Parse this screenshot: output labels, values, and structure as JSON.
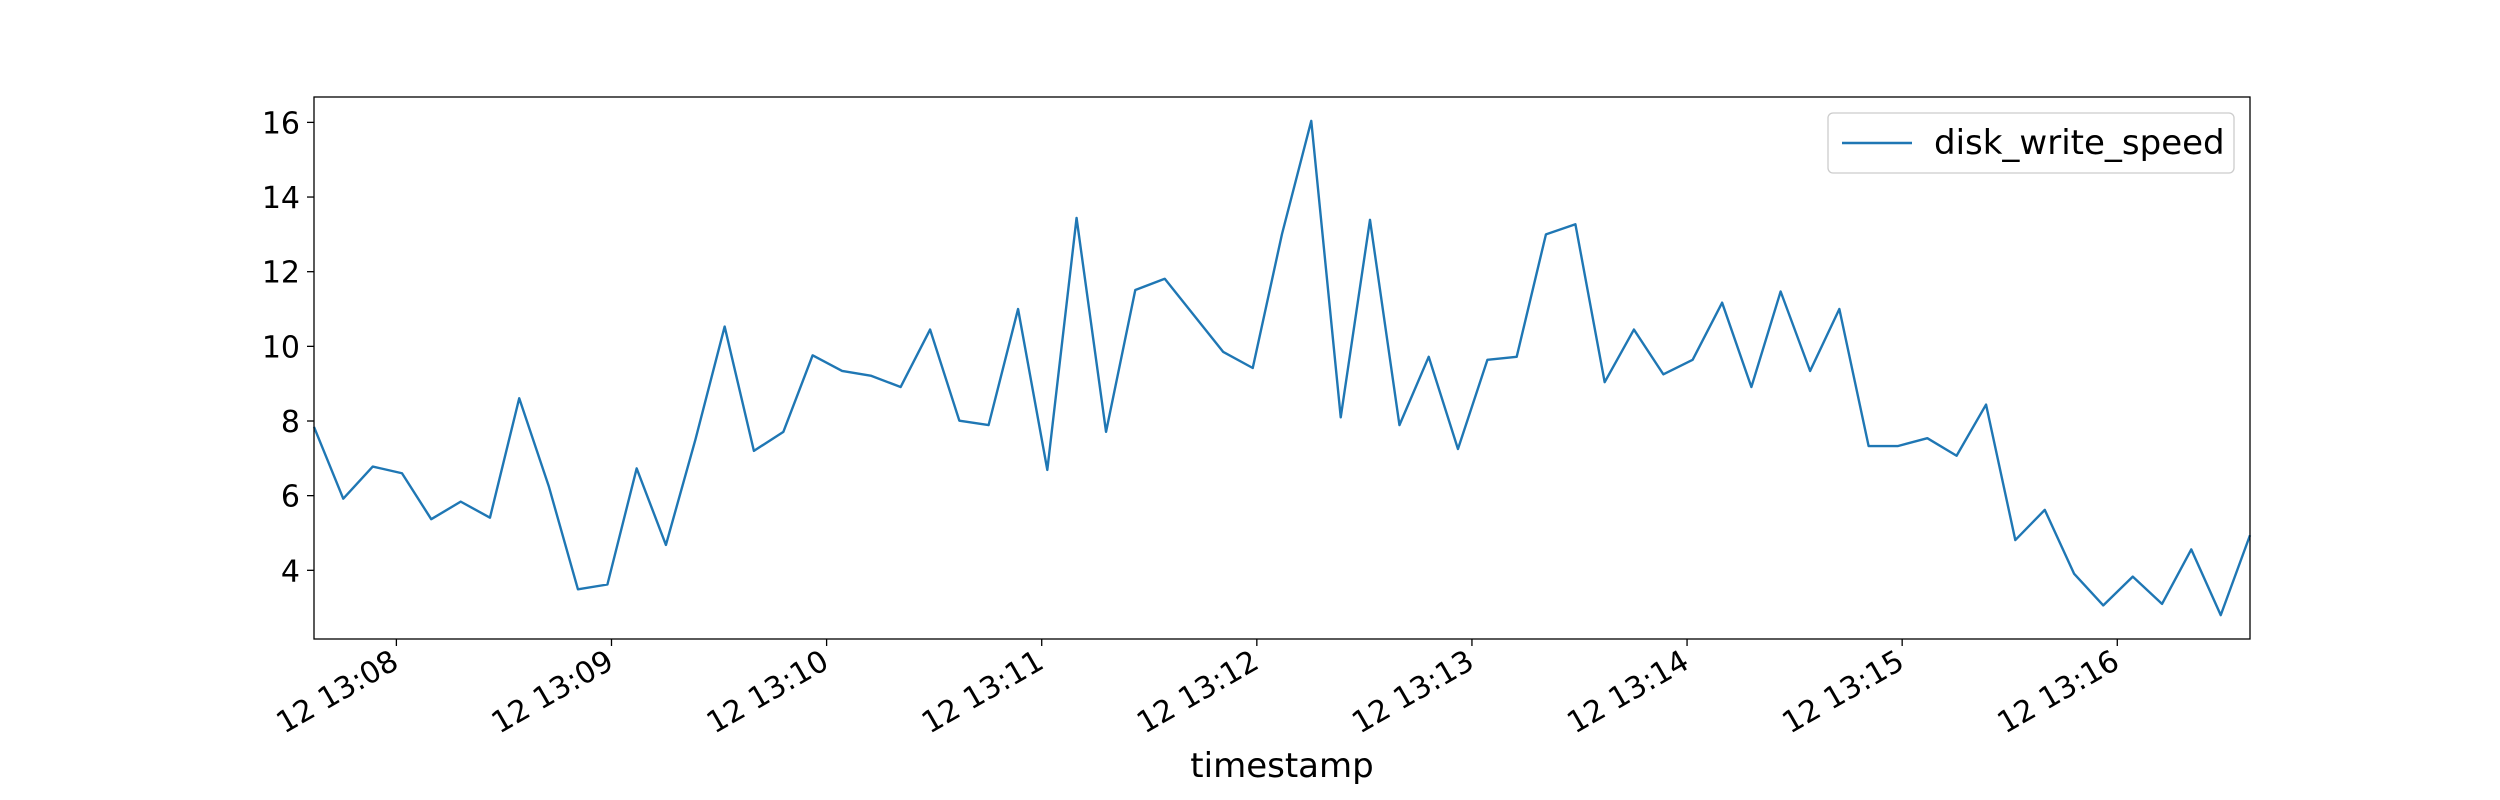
{
  "chart_data": {
    "type": "line",
    "x_label": "timestamp",
    "x": [
      7.617,
      7.753,
      7.89,
      8.026,
      8.162,
      8.299,
      8.435,
      8.571,
      8.708,
      8.844,
      8.981,
      9.117,
      9.253,
      9.39,
      9.526,
      9.662,
      9.799,
      9.935,
      10.072,
      10.208,
      10.344,
      10.481,
      10.617,
      10.753,
      10.89,
      11.026,
      11.162,
      11.299,
      11.435,
      11.572,
      11.708,
      11.844,
      11.981,
      12.117,
      12.253,
      12.39,
      12.526,
      12.663,
      12.799,
      12.935,
      13.072,
      13.208,
      13.344,
      13.481,
      13.617,
      13.753,
      13.89,
      14.026,
      14.163,
      14.299,
      14.435,
      14.572,
      14.708,
      14.844,
      14.981,
      15.117,
      15.253,
      15.39,
      15.526,
      15.663,
      15.799,
      15.935,
      16.072,
      16.208,
      16.344,
      16.481,
      16.617
    ],
    "series": [
      {
        "name": "disk_write_speed",
        "color": "#1f77b4",
        "values": [
          7.84,
          5.92,
          6.78,
          6.6,
          5.37,
          5.84,
          5.41,
          8.61,
          6.26,
          3.49,
          3.62,
          6.73,
          4.68,
          7.5,
          10.53,
          7.2,
          7.71,
          9.76,
          9.34,
          9.21,
          8.91,
          10.45,
          8.01,
          7.89,
          11.0,
          6.69,
          13.44,
          7.71,
          11.51,
          11.81,
          10.83,
          9.85,
          9.42,
          13.01,
          16.04,
          8.1,
          13.39,
          7.89,
          9.72,
          7.25,
          9.64,
          9.72,
          13.0,
          13.27,
          9.04,
          10.45,
          9.25,
          9.64,
          11.17,
          8.91,
          11.47,
          9.34,
          11.0,
          7.33,
          7.33,
          7.54,
          7.07,
          8.44,
          4.81,
          5.62,
          3.91,
          3.06,
          3.83,
          3.1,
          4.56,
          2.8,
          4.94
        ]
      }
    ],
    "xlim": [
      7.617,
      16.617
    ],
    "xticks": [
      {
        "value": 8,
        "label": "12 13:08"
      },
      {
        "value": 9,
        "label": "12 13:09"
      },
      {
        "value": 10,
        "label": "12 13:10"
      },
      {
        "value": 11,
        "label": "12 13:11"
      },
      {
        "value": 12,
        "label": "12 13:12"
      },
      {
        "value": 13,
        "label": "12 13:13"
      },
      {
        "value": 14,
        "label": "12 13:14"
      },
      {
        "value": 15,
        "label": "12 13:15"
      },
      {
        "value": 16,
        "label": "12 13:16"
      }
    ],
    "ylim": [
      2.16,
      16.68
    ],
    "yticks": [
      4,
      6,
      8,
      10,
      12,
      14,
      16
    ],
    "legend": "upper right"
  }
}
